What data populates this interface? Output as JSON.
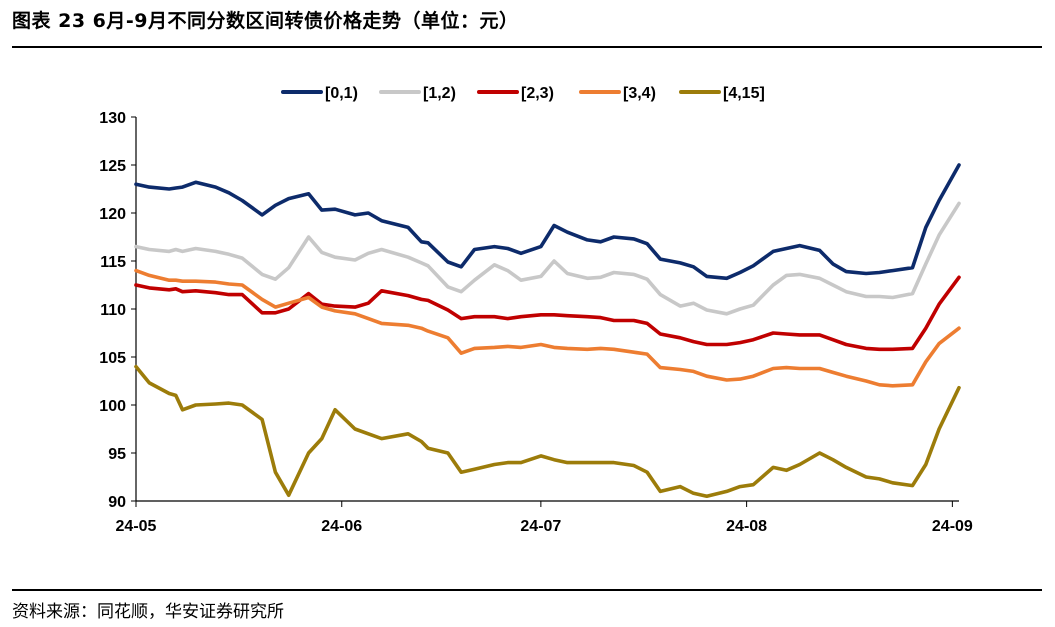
{
  "header": {
    "title": "图表 23 6月-9月不同分数区间转债价格走势（单位：元）"
  },
  "footer": {
    "source": "资料来源：同花顺，华安证券研究所"
  },
  "chart_data": {
    "type": "line",
    "title": "",
    "xlabel": "",
    "ylabel": "",
    "ylim": [
      90,
      130
    ],
    "yticks": [
      90,
      95,
      100,
      105,
      110,
      115,
      120,
      125,
      130
    ],
    "x_start": "2024-05-01",
    "x_end": "2024-09-02",
    "xticks": [
      {
        "date": "2024-05-01",
        "label": "24-05"
      },
      {
        "date": "2024-06-01",
        "label": "24-06"
      },
      {
        "date": "2024-07-01",
        "label": "24-07"
      },
      {
        "date": "2024-08-01",
        "label": "24-08"
      },
      {
        "date": "2024-09-01",
        "label": "24-09"
      }
    ],
    "grid": false,
    "legend_position": "top",
    "x": [
      "2024-05-01",
      "2024-05-03",
      "2024-05-06",
      "2024-05-07",
      "2024-05-08",
      "2024-05-10",
      "2024-05-13",
      "2024-05-15",
      "2024-05-17",
      "2024-05-20",
      "2024-05-22",
      "2024-05-24",
      "2024-05-27",
      "2024-05-29",
      "2024-05-31",
      "2024-06-03",
      "2024-06-05",
      "2024-06-07",
      "2024-06-11",
      "2024-06-13",
      "2024-06-14",
      "2024-06-17",
      "2024-06-19",
      "2024-06-21",
      "2024-06-24",
      "2024-06-26",
      "2024-06-28",
      "2024-07-01",
      "2024-07-03",
      "2024-07-05",
      "2024-07-08",
      "2024-07-10",
      "2024-07-12",
      "2024-07-15",
      "2024-07-17",
      "2024-07-19",
      "2024-07-22",
      "2024-07-24",
      "2024-07-26",
      "2024-07-29",
      "2024-07-31",
      "2024-08-02",
      "2024-08-05",
      "2024-08-07",
      "2024-08-09",
      "2024-08-12",
      "2024-08-14",
      "2024-08-16",
      "2024-08-19",
      "2024-08-21",
      "2024-08-23",
      "2024-08-26",
      "2024-08-28",
      "2024-08-30",
      "2024-09-02"
    ],
    "series": [
      {
        "name": "[0,1)",
        "color": "#0d2b6b",
        "values": [
          123.0,
          122.7,
          122.5,
          122.6,
          122.7,
          123.2,
          122.7,
          122.1,
          121.3,
          119.8,
          120.8,
          121.5,
          122.0,
          120.3,
          120.4,
          119.8,
          120.0,
          119.2,
          118.5,
          117.0,
          116.9,
          114.9,
          114.4,
          116.2,
          116.5,
          116.3,
          115.8,
          116.5,
          118.7,
          118.0,
          117.2,
          117.0,
          117.5,
          117.3,
          116.8,
          115.2,
          114.8,
          114.4,
          113.4,
          113.2,
          113.8,
          114.5,
          116.0,
          116.3,
          116.6,
          116.1,
          114.7,
          113.9,
          113.7,
          113.8,
          114.0,
          114.3,
          118.5,
          121.3,
          125.0
        ]
      },
      {
        "name": "[1,2)",
        "color": "#c8c8c8",
        "values": [
          116.5,
          116.2,
          116.0,
          116.2,
          116.0,
          116.3,
          116.0,
          115.7,
          115.3,
          113.6,
          113.1,
          114.3,
          117.5,
          115.9,
          115.4,
          115.1,
          115.8,
          116.2,
          115.4,
          114.8,
          114.5,
          112.3,
          111.8,
          113.0,
          114.6,
          114.0,
          113.0,
          113.4,
          115.0,
          113.7,
          113.2,
          113.3,
          113.8,
          113.6,
          113.1,
          111.5,
          110.3,
          110.6,
          109.9,
          109.5,
          110.0,
          110.4,
          112.5,
          113.5,
          113.6,
          113.2,
          112.5,
          111.8,
          111.3,
          111.3,
          111.2,
          111.6,
          114.7,
          117.7,
          121.0
        ]
      },
      {
        "name": "[2,3)",
        "color": "#c00000",
        "values": [
          112.5,
          112.2,
          112.0,
          112.1,
          111.8,
          111.9,
          111.7,
          111.5,
          111.5,
          109.6,
          109.6,
          110.0,
          111.6,
          110.5,
          110.3,
          110.2,
          110.6,
          111.9,
          111.4,
          111.0,
          110.9,
          109.9,
          109.0,
          109.2,
          109.2,
          109.0,
          109.2,
          109.4,
          109.4,
          109.3,
          109.2,
          109.1,
          108.8,
          108.8,
          108.5,
          107.4,
          107.0,
          106.6,
          106.3,
          106.3,
          106.5,
          106.8,
          107.5,
          107.4,
          107.3,
          107.3,
          106.8,
          106.3,
          105.9,
          105.8,
          105.8,
          105.9,
          108.0,
          110.5,
          113.3
        ]
      },
      {
        "name": "[3,4)",
        "color": "#ed7d31",
        "values": [
          114.0,
          113.5,
          113.0,
          113.0,
          112.9,
          112.9,
          112.8,
          112.6,
          112.5,
          111.0,
          110.2,
          110.6,
          111.2,
          110.2,
          109.8,
          109.5,
          109.0,
          108.5,
          108.3,
          108.0,
          107.7,
          107.0,
          105.4,
          105.9,
          106.0,
          106.1,
          106.0,
          106.3,
          106.0,
          105.9,
          105.8,
          105.9,
          105.8,
          105.5,
          105.3,
          103.9,
          103.7,
          103.5,
          103.0,
          102.6,
          102.7,
          103.0,
          103.8,
          103.9,
          103.8,
          103.8,
          103.4,
          103.0,
          102.5,
          102.1,
          102.0,
          102.1,
          104.5,
          106.4,
          108.0
        ]
      },
      {
        "name": "[4,15]",
        "color": "#9c7c0a",
        "values": [
          104.0,
          102.3,
          101.2,
          101.0,
          99.5,
          100.0,
          100.1,
          100.2,
          100.0,
          98.5,
          93.0,
          90.6,
          95.0,
          96.5,
          99.5,
          97.5,
          97.0,
          96.5,
          97.0,
          96.2,
          95.5,
          95.0,
          93.0,
          93.3,
          93.8,
          94.0,
          94.0,
          94.7,
          94.3,
          94.0,
          94.0,
          94.0,
          94.0,
          93.7,
          93.0,
          91.0,
          91.5,
          90.8,
          90.5,
          91.0,
          91.5,
          91.7,
          93.5,
          93.2,
          93.8,
          95.0,
          94.3,
          93.5,
          92.5,
          92.3,
          91.9,
          91.6,
          93.8,
          97.5,
          101.8
        ]
      }
    ]
  }
}
